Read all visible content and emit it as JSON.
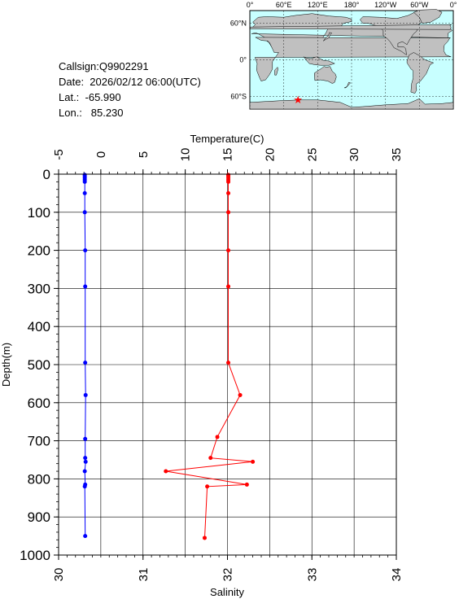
{
  "station": {
    "callsign": "Callsign:Q9902291",
    "date": "Date:  2026/02/12 06:00(UTC)",
    "lat": "Lat.:  -65.990",
    "lon": "Lon.:   85.230"
  },
  "map": {
    "lon_labels": [
      "0°",
      "60°E",
      "120°E",
      "180°",
      "120°W",
      "60°W",
      "0°"
    ],
    "lat_labels": [
      "60°N",
      "0°",
      "60°S"
    ],
    "ocean_color": "#c8ffff",
    "land_color": "#c0c0c0",
    "marker_icon": "star-icon",
    "marker_color": "#ff0000",
    "marker": {
      "lon": 85.23,
      "lat": -65.99
    }
  },
  "chart_data": {
    "type": "line",
    "top_axis_label": "Temperature(C)",
    "bottom_axis_label": "Salinity",
    "left_axis_label": "Depth(m)",
    "temperature_range": [
      -5,
      35
    ],
    "temperature_ticks": [
      "-5",
      "0",
      "5",
      "10",
      "15",
      "20",
      "25",
      "30",
      "35"
    ],
    "salinity_range": [
      30,
      34
    ],
    "salinity_ticks": [
      "30",
      "31",
      "32",
      "33",
      "34"
    ],
    "depth_range": [
      0,
      1000
    ],
    "depth_ticks": [
      "0",
      "100",
      "200",
      "300",
      "400",
      "500",
      "600",
      "700",
      "800",
      "900",
      "1000"
    ],
    "grid": true,
    "series": [
      {
        "color": "#0000ff",
        "axis": "temperature",
        "points": [
          {
            "depth": 2,
            "value": -1.9
          },
          {
            "depth": 5,
            "value": -1.9
          },
          {
            "depth": 10,
            "value": -1.9
          },
          {
            "depth": 15,
            "value": -1.9
          },
          {
            "depth": 20,
            "value": -1.9
          },
          {
            "depth": 50,
            "value": -1.9
          },
          {
            "depth": 100,
            "value": -1.9
          },
          {
            "depth": 200,
            "value": -1.85
          },
          {
            "depth": 295,
            "value": -1.85
          },
          {
            "depth": 495,
            "value": -1.85
          },
          {
            "depth": 580,
            "value": -1.8
          },
          {
            "depth": 695,
            "value": -1.85
          },
          {
            "depth": 745,
            "value": -1.85
          },
          {
            "depth": 755,
            "value": -1.8
          },
          {
            "depth": 780,
            "value": -1.9
          },
          {
            "depth": 815,
            "value": -1.85
          },
          {
            "depth": 820,
            "value": -1.9
          },
          {
            "depth": 950,
            "value": -1.85
          }
        ]
      },
      {
        "color": "#ff0000",
        "axis": "salinity",
        "points": [
          {
            "depth": 2,
            "value": 32.01
          },
          {
            "depth": 5,
            "value": 32.01
          },
          {
            "depth": 10,
            "value": 32.01
          },
          {
            "depth": 15,
            "value": 32.01
          },
          {
            "depth": 20,
            "value": 32.01
          },
          {
            "depth": 50,
            "value": 32.01
          },
          {
            "depth": 100,
            "value": 32.01
          },
          {
            "depth": 200,
            "value": 32.01
          },
          {
            "depth": 295,
            "value": 32.01
          },
          {
            "depth": 495,
            "value": 32.01
          },
          {
            "depth": 580,
            "value": 32.15
          },
          {
            "depth": 690,
            "value": 31.88
          },
          {
            "depth": 745,
            "value": 31.8
          },
          {
            "depth": 755,
            "value": 32.3
          },
          {
            "depth": 780,
            "value": 31.27
          },
          {
            "depth": 815,
            "value": 32.23
          },
          {
            "depth": 820,
            "value": 31.76
          },
          {
            "depth": 955,
            "value": 31.73
          }
        ]
      }
    ]
  }
}
